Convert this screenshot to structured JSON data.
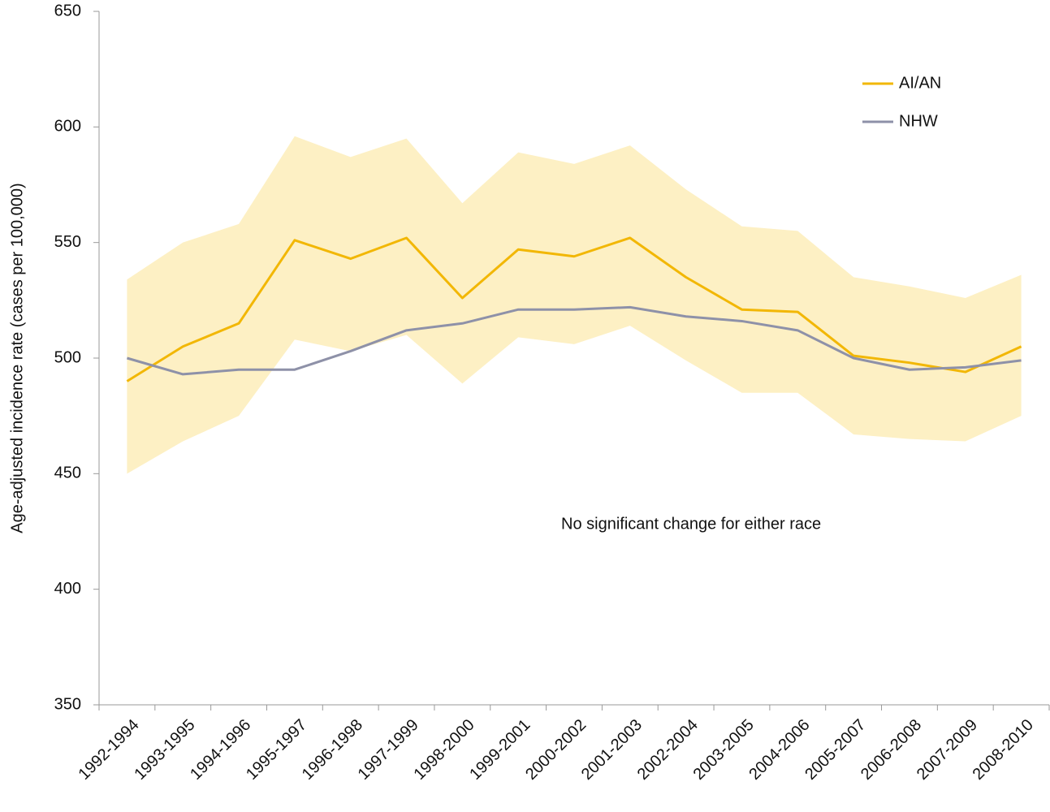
{
  "chart_data": {
    "type": "line",
    "ylabel": "Age-adjusted incidence rate (cases per 100,000)",
    "annotation": "No significant change for either race",
    "categories": [
      "1992-1994",
      "1993-1995",
      "1994-1996",
      "1995-1997",
      "1996-1998",
      "1997-1999",
      "1998-2000",
      "1999-2001",
      "2000-2002",
      "2001-2003",
      "2002-2004",
      "2003-2005",
      "2004-2006",
      "2005-2007",
      "2006-2008",
      "2007-2009",
      "2008-2010"
    ],
    "series": [
      {
        "name": "AI/AN",
        "color": "#f2b705",
        "band_color": "#fdf0c4",
        "values": [
          490,
          505,
          515,
          551,
          543,
          552,
          526,
          547,
          544,
          552,
          535,
          521,
          520,
          501,
          498,
          494,
          505
        ],
        "lower": [
          450,
          464,
          475,
          508,
          503,
          510,
          489,
          509,
          506,
          514,
          499,
          485,
          485,
          467,
          465,
          464,
          475
        ],
        "upper": [
          534,
          550,
          558,
          596,
          587,
          595,
          567,
          589,
          584,
          592,
          573,
          557,
          555,
          535,
          531,
          526,
          536
        ]
      },
      {
        "name": "NHW",
        "color": "#8e91a8",
        "values": [
          500,
          493,
          495,
          495,
          503,
          512,
          515,
          521,
          521,
          522,
          518,
          516,
          512,
          500,
          495,
          496,
          499
        ]
      }
    ],
    "ylim": [
      350,
      650
    ],
    "yticks": [
      350,
      400,
      450,
      500,
      550,
      600,
      650
    ],
    "grid": false,
    "legend": "upper-right"
  }
}
